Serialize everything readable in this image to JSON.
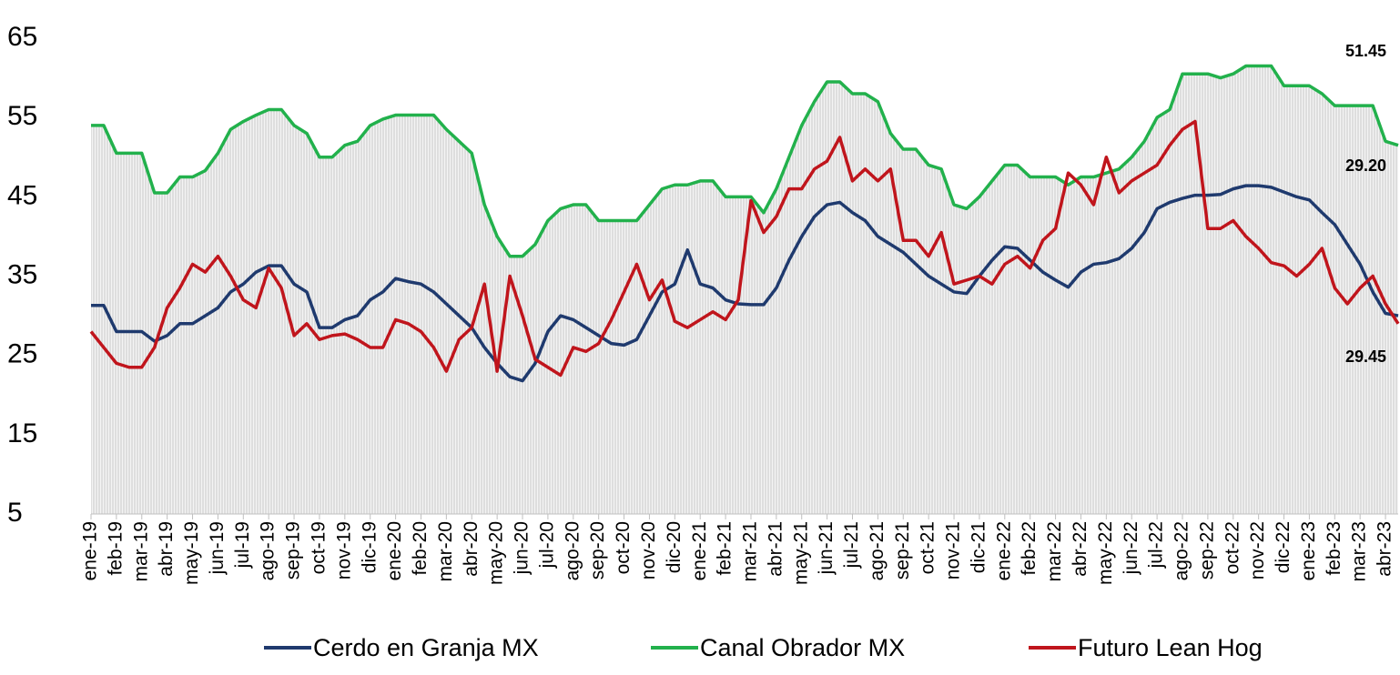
{
  "chart_data": {
    "type": "line",
    "categories": [
      "ene-19",
      null,
      "feb-19",
      null,
      "mar-19",
      null,
      "abr-19",
      null,
      "may-19",
      null,
      "jun-19",
      null,
      "jul-19",
      null,
      "ago-19",
      null,
      "sep-19",
      null,
      "oct-19",
      null,
      "nov-19",
      null,
      "dic-19",
      null,
      "ene-20",
      null,
      "feb-20",
      null,
      "mar-20",
      null,
      "abr-20",
      null,
      "may-20",
      null,
      "jun-20",
      null,
      "jul-20",
      null,
      "ago-20",
      null,
      "sep-20",
      null,
      "oct-20",
      null,
      "nov-20",
      null,
      "dic-20",
      null,
      "ene-21",
      null,
      "feb-21",
      null,
      "mar-21",
      null,
      "abr-21",
      null,
      "may-21",
      null,
      "jun-21",
      null,
      "jul-21",
      null,
      "ago-21",
      null,
      "sep-21",
      null,
      "oct-21",
      null,
      "nov-21",
      null,
      "dic-21",
      null,
      "ene-22",
      null,
      "feb-22",
      null,
      "mar-22",
      null,
      "abr-22",
      null,
      "may-22",
      null,
      "jun-22",
      null,
      "jul-22",
      null,
      "ago-22",
      null,
      "sep-22",
      null,
      "oct-22",
      null,
      "nov-22",
      null,
      "dic-22",
      null,
      "ene-23",
      null,
      "feb-23",
      null,
      "mar-23",
      null,
      "abr-23",
      null
    ],
    "series": [
      {
        "name": "Cerdo en Granja MX",
        "color": "#1f3a6e",
        "values": [
          31.3,
          31.3,
          28,
          28,
          28,
          26.8,
          27.5,
          29,
          29,
          30,
          31,
          33,
          34,
          35.5,
          36.3,
          36.3,
          34,
          33,
          28.5,
          28.5,
          29.5,
          30,
          32,
          33,
          34.7,
          34.3,
          34,
          33,
          31.5,
          30,
          28.5,
          26,
          24,
          22.3,
          21.8,
          24,
          28,
          30,
          29.5,
          28.5,
          27.5,
          26.5,
          26.3,
          27,
          30,
          33,
          34,
          38.3,
          34,
          33.5,
          32,
          31.5,
          31.4,
          31.4,
          33.5,
          37,
          40,
          42.5,
          44,
          44.3,
          43,
          42,
          40,
          39,
          38,
          36.5,
          35,
          34,
          33,
          32.8,
          35,
          37,
          38.7,
          38.5,
          37,
          35.5,
          34.5,
          33.6,
          35.5,
          36.5,
          36.7,
          37.2,
          38.5,
          40.5,
          43.5,
          44.3,
          44.8,
          45.2,
          45.2,
          45.3,
          46,
          46.4,
          46.4,
          46.2,
          45.6,
          45,
          44.6,
          43,
          41.5,
          39,
          36.5,
          33,
          30.3,
          30
        ]
      },
      {
        "name": "Canal Obrador MX",
        "color": "#22b14c",
        "values": [
          54,
          54,
          50.5,
          50.5,
          50.5,
          45.5,
          45.5,
          47.5,
          47.5,
          48.3,
          50.5,
          53.5,
          54.5,
          55.3,
          56,
          56,
          54,
          53,
          50,
          50,
          51.5,
          52,
          54,
          54.8,
          55.3,
          55.3,
          55.3,
          55.3,
          53.5,
          52,
          50.5,
          44,
          40,
          37.5,
          37.5,
          39,
          42,
          43.5,
          44,
          44,
          42,
          42,
          42,
          42,
          44,
          46,
          46.5,
          46.5,
          47,
          47,
          45,
          45,
          45,
          43,
          46,
          50,
          54,
          57,
          59.5,
          59.5,
          58,
          58,
          57,
          53,
          51,
          51,
          49,
          48.5,
          44,
          43.5,
          45,
          47,
          49,
          49,
          47.5,
          47.5,
          47.5,
          46.5,
          47.5,
          47.5,
          48,
          48.5,
          50,
          52,
          55,
          56,
          60.5,
          60.5,
          60.5,
          60,
          60.5,
          61.5,
          61.5,
          61.5,
          59,
          59,
          59,
          58,
          56.5,
          56.5,
          56.5,
          56.5,
          52,
          51.5
        ]
      },
      {
        "name": "Futuro Lean Hog",
        "color": "#c0151c",
        "values": [
          28,
          26,
          24,
          23.5,
          23.5,
          26,
          31,
          33.5,
          36.5,
          35.5,
          37.5,
          35,
          32,
          31,
          36,
          33.5,
          27.5,
          29,
          27,
          27.5,
          27.7,
          27,
          26,
          26,
          29.5,
          29,
          28,
          26,
          23,
          27,
          28.5,
          34,
          23,
          35,
          30,
          24.5,
          23.5,
          22.5,
          26,
          25.5,
          26.5,
          29.5,
          33,
          36.5,
          32,
          34.5,
          29.3,
          28.5,
          29.5,
          30.5,
          29.5,
          32,
          44.5,
          40.5,
          42.5,
          46,
          46,
          48.5,
          49.5,
          52.5,
          47,
          48.5,
          47,
          48.5,
          39.5,
          39.5,
          37.5,
          40.5,
          34,
          34.5,
          35,
          34,
          36.5,
          37.5,
          36,
          39.5,
          41,
          48,
          46.5,
          44,
          50,
          45.5,
          47,
          48,
          49,
          51.5,
          53.5,
          54.5,
          41,
          41,
          42,
          40,
          38.5,
          36.7,
          36.3,
          35,
          36.5,
          38.5,
          33.5,
          31.5,
          33.5,
          35,
          31.5,
          29
        ]
      }
    ],
    "annotations": [
      "51.45",
      "29.20",
      "29.45"
    ],
    "ylim": [
      5,
      65
    ],
    "yticks": [
      5,
      15,
      25,
      35,
      45,
      55,
      65
    ],
    "grid": false,
    "legend": "bottom"
  }
}
